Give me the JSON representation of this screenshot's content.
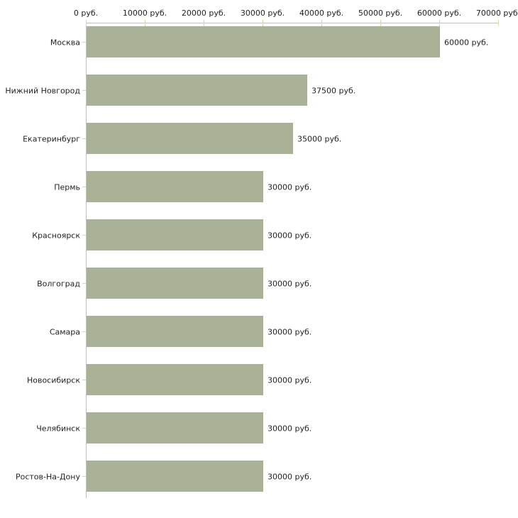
{
  "chart_data": {
    "type": "bar",
    "orientation": "horizontal",
    "title": "",
    "xlabel": "",
    "ylabel": "",
    "categories": [
      "Москва",
      "Нижний Новгород",
      "Екатеринбург",
      "Пермь",
      "Красноярск",
      "Волгоград",
      "Самара",
      "Новосибирск",
      "Челябинск",
      "Ростов-На-Дону"
    ],
    "values": [
      60000,
      37500,
      35000,
      30000,
      30000,
      30000,
      30000,
      30000,
      30000,
      30000
    ],
    "value_labels": [
      "60000 руб.",
      "37500 руб.",
      "35000 руб.",
      "30000 руб.",
      "30000 руб.",
      "30000 руб.",
      "30000 руб.",
      "30000 руб.",
      "30000 руб.",
      "30000 руб."
    ],
    "xlim": [
      0,
      70000
    ],
    "x_ticks": [
      0,
      10000,
      20000,
      30000,
      40000,
      50000,
      60000,
      70000
    ],
    "x_tick_labels": [
      "0 руб.",
      "10000 руб.",
      "20000 руб.",
      "30000 руб.",
      "40000 руб.",
      "50000 руб.",
      "60000 руб.",
      "70000 руб."
    ],
    "grid": false,
    "legend": "none",
    "colors": {
      "bar": "#a9b296",
      "axis_line": "#c0c0c0",
      "tick_mark": "#d6d8ac",
      "text": "#1f1f1f",
      "background": "#ffffff"
    }
  }
}
